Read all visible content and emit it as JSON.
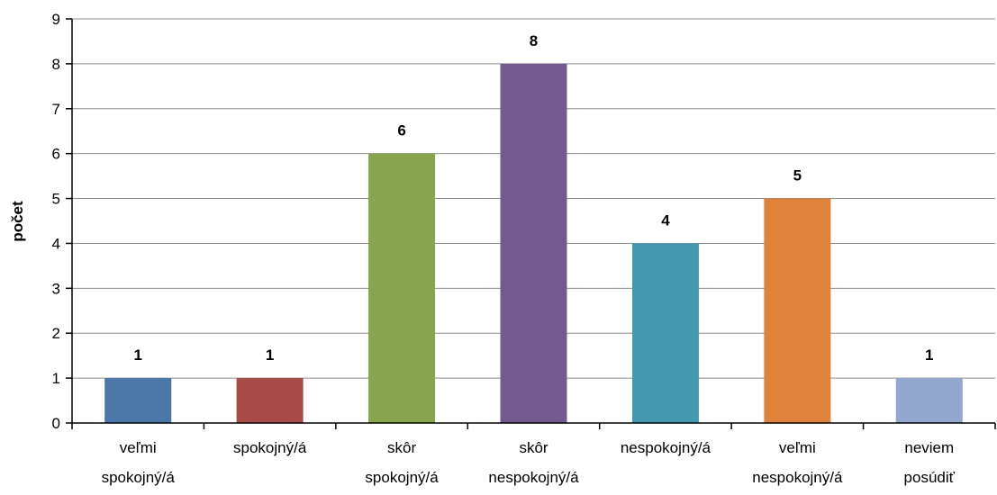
{
  "chart_data": {
    "type": "bar",
    "ylabel": "počet",
    "xlabel": "",
    "title": "",
    "ylim": [
      0,
      9
    ],
    "yticks": [
      0,
      1,
      2,
      3,
      4,
      5,
      6,
      7,
      8,
      9
    ],
    "grid": true,
    "legend": "none",
    "categories": [
      [
        "veľmi",
        "spokojný/á"
      ],
      [
        "spokojný/á"
      ],
      [
        "skôr",
        "spokojný/á"
      ],
      [
        "skôr",
        "nespokojný/á"
      ],
      [
        "nespokojný/á"
      ],
      [
        "veľmi",
        "nespokojný/á"
      ],
      [
        "neviem",
        "posúdiť"
      ]
    ],
    "values": [
      1,
      1,
      6,
      8,
      4,
      5,
      1
    ],
    "colors": [
      "#4A76A8",
      "#A84A47",
      "#88A44D",
      "#725A8E",
      "#4499B0",
      "#DE823C",
      "#93A8CF"
    ]
  }
}
